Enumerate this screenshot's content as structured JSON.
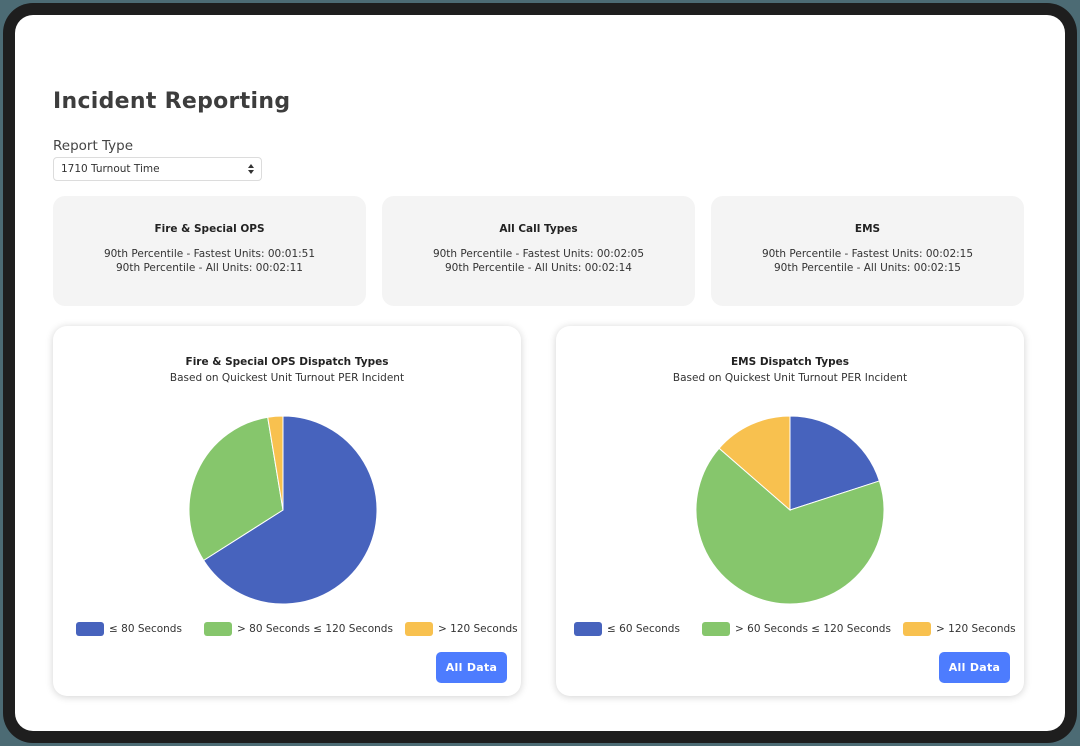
{
  "page": {
    "title": "Incident Reporting"
  },
  "report_type": {
    "label": "Report Type",
    "selected": "1710 Turnout Time"
  },
  "stat_cards": [
    {
      "title": "Fire & Special OPS",
      "fastest": "90th Percentile - Fastest Units: 00:01:51",
      "all": "90th Percentile - All Units: 00:02:11"
    },
    {
      "title": "All Call Types",
      "fastest": "90th Percentile - Fastest Units: 00:02:05",
      "all": "90th Percentile - All Units: 00:02:14"
    },
    {
      "title": "EMS",
      "fastest": "90th Percentile - Fastest Units: 00:02:15",
      "all": "90th Percentile - All Units: 00:02:15"
    }
  ],
  "charts": [
    {
      "title": "Fire & Special OPS Dispatch Types",
      "subtitle": "Based on Quickest Unit Turnout PER Incident",
      "legend": [
        "≤ 80 Seconds",
        "> 80 Seconds ≤ 120 Seconds",
        "> 120 Seconds"
      ],
      "button": "All Data"
    },
    {
      "title": "EMS Dispatch Types",
      "subtitle": "Based on Quickest Unit Turnout PER Incident",
      "legend": [
        "≤ 60 Seconds",
        "> 60 Seconds ≤ 120 Seconds",
        "> 120 Seconds"
      ],
      "button": "All Data"
    }
  ],
  "colors": {
    "blue": "#4763bd",
    "green": "#86c66c",
    "yellow": "#f8c14f",
    "button": "#4d7cfe"
  },
  "chart_data": [
    {
      "type": "pie",
      "title": "Fire & Special OPS Dispatch Types",
      "subtitle": "Based on Quickest Unit Turnout PER Incident",
      "categories": [
        "≤ 80 Seconds",
        "> 80 Seconds ≤ 120 Seconds",
        "> 120 Seconds"
      ],
      "values": [
        66.0,
        31.4,
        2.6
      ],
      "colors": [
        "#4763bd",
        "#86c66c",
        "#f8c14f"
      ],
      "legend_position": "bottom",
      "start_angle": "top, clockwise"
    },
    {
      "type": "pie",
      "title": "EMS Dispatch Types",
      "subtitle": "Based on Quickest Unit Turnout PER Incident",
      "categories": [
        "≤ 60 Seconds",
        "> 60 Seconds ≤ 120 Seconds",
        "> 120 Seconds"
      ],
      "values": [
        20.0,
        66.4,
        13.6
      ],
      "colors": [
        "#4763bd",
        "#86c66c",
        "#f8c14f"
      ],
      "legend_position": "bottom",
      "start_angle": "top, clockwise"
    }
  ]
}
